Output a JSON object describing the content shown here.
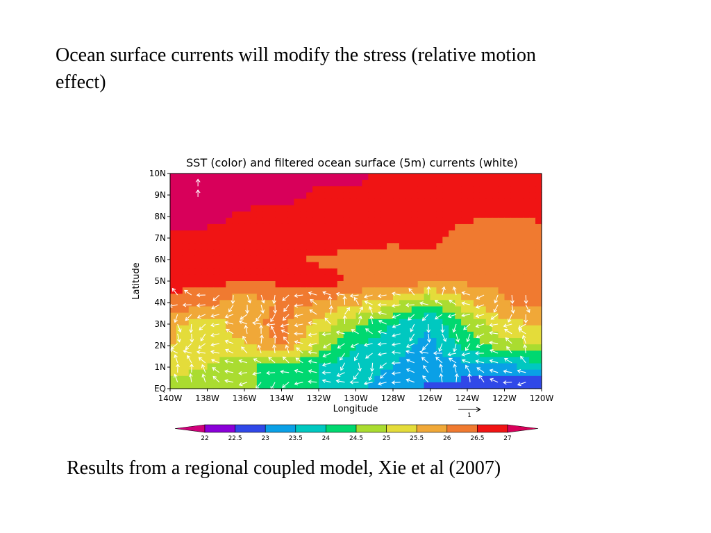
{
  "slide": {
    "headline": "Ocean surface currents will modify the stress (relative motion effect)",
    "caption": "Results from a regional coupled model, Xie et al (2007)"
  },
  "chart_data": {
    "type": "heatmap",
    "title": "SST (color) and filtered ocean surface (5m) currents (white)",
    "xlabel": "Longitude",
    "ylabel": "Latitude",
    "x_ticks": [
      "140W",
      "138W",
      "136W",
      "134W",
      "132W",
      "130W",
      "128W",
      "126W",
      "124W",
      "122W",
      "120W"
    ],
    "y_ticks": [
      "EQ",
      "1N",
      "2N",
      "3N",
      "4N",
      "5N",
      "6N",
      "7N",
      "8N",
      "9N",
      "10N"
    ],
    "xlim": [
      -140,
      -120
    ],
    "ylim": [
      0,
      10
    ],
    "grid": false,
    "colorbar": {
      "levels": [
        "22",
        "22.5",
        "23",
        "23.5",
        "24",
        "24.5",
        "25",
        "25.5",
        "26",
        "26.5",
        "27"
      ],
      "colors": [
        "#d0007a",
        "#8a00d8",
        "#3048e8",
        "#0aa0e6",
        "#00c8c0",
        "#00d870",
        "#aadc30",
        "#e4dc3a",
        "#f0a838",
        "#f07a30",
        "#f01414",
        "#d8005a"
      ]
    },
    "vector_reference": {
      "label": "1"
    },
    "x": [
      -140,
      -138,
      -136,
      -134,
      -132,
      -130,
      -128,
      -126,
      -124,
      -122,
      -120
    ],
    "y": [
      0,
      1,
      2,
      3,
      4,
      5,
      6,
      7,
      8,
      9,
      10
    ],
    "sst": [
      [
        24.7,
        24.8,
        24.6,
        24.3,
        24.0,
        23.6,
        23.2,
        22.9,
        22.8,
        22.6,
        22.4
      ],
      [
        25.2,
        25.0,
        24.6,
        24.2,
        24.0,
        23.7,
        23.5,
        23.3,
        23.2,
        23.4,
        23.6
      ],
      [
        25.5,
        25.3,
        25.4,
        26.1,
        24.8,
        24.0,
        23.6,
        23.4,
        24.2,
        24.8,
        25.0
      ],
      [
        25.6,
        25.2,
        25.8,
        26.2,
        25.3,
        24.6,
        24.0,
        23.5,
        24.6,
        25.4,
        25.5
      ],
      [
        26.4,
        26.2,
        25.6,
        26.1,
        26.0,
        25.6,
        25.2,
        24.5,
        25.4,
        26.0,
        26.2
      ],
      [
        26.6,
        26.7,
        26.5,
        26.6,
        26.8,
        26.4,
        26.3,
        26.2,
        26.1,
        26.1,
        26.4
      ],
      [
        26.7,
        26.7,
        26.7,
        26.7,
        26.4,
        26.3,
        26.3,
        26.3,
        26.2,
        26.2,
        26.2
      ],
      [
        26.8,
        26.8,
        26.8,
        26.8,
        26.8,
        26.8,
        26.6,
        26.7,
        26.2,
        26.2,
        26.2
      ],
      [
        27.2,
        27.2,
        26.9,
        26.8,
        26.8,
        26.8,
        26.7,
        26.8,
        26.6,
        26.5,
        26.6
      ],
      [
        27.2,
        27.2,
        27.2,
        27.2,
        26.9,
        26.8,
        26.8,
        26.7,
        26.8,
        26.7,
        26.6
      ],
      [
        27.2,
        27.2,
        27.3,
        27.1,
        27.2,
        27.2,
        26.8,
        26.8,
        26.7,
        26.8,
        26.6
      ]
    ]
  }
}
